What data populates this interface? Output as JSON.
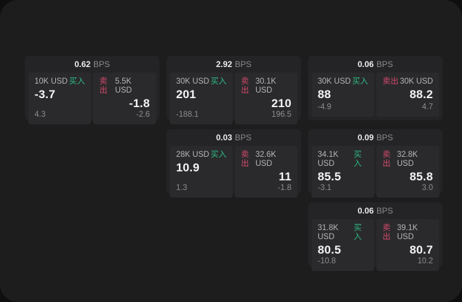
{
  "labels": {
    "buy": "买入",
    "sell": "卖出",
    "bps_unit": "BPS"
  },
  "colors": {
    "backdrop": "#0f0f10",
    "window": "#1d1d1e",
    "card": "#242426",
    "panel": "#2a2a2c",
    "buy": "#2ebd85",
    "sell": "#d5496c"
  },
  "cards": [
    {
      "row": 1,
      "col": 1,
      "bps": "0.62",
      "buy": {
        "notional": "10K USD",
        "price": "-3.7",
        "delta": "4.3"
      },
      "sell": {
        "notional": "5.5K USD",
        "price": "-1.8",
        "delta": "-2.6"
      }
    },
    {
      "row": 1,
      "col": 2,
      "bps": "2.92",
      "buy": {
        "notional": "30K USD",
        "price": "201",
        "delta": "-188.1"
      },
      "sell": {
        "notional": "30.1K USD",
        "price": "210",
        "delta": "196.5"
      }
    },
    {
      "row": 1,
      "col": 3,
      "bps": "0.06",
      "buy": {
        "notional": "30K USD",
        "price": "88",
        "delta": "-4.9"
      },
      "sell": {
        "notional": "30K USD",
        "price": "88.2",
        "delta": "4.7"
      }
    },
    {
      "row": 2,
      "col": 2,
      "bps": "0.03",
      "buy": {
        "notional": "28K USD",
        "price": "10.9",
        "delta": "1.3"
      },
      "sell": {
        "notional": "32.6K USD",
        "price": "11",
        "delta": "-1.8"
      }
    },
    {
      "row": 2,
      "col": 3,
      "bps": "0.09",
      "buy": {
        "notional": "34.1K USD",
        "price": "85.5",
        "delta": "-3.1"
      },
      "sell": {
        "notional": "32.8K USD",
        "price": "85.8",
        "delta": "3.0"
      }
    },
    {
      "row": 3,
      "col": 3,
      "bps": "0.06",
      "buy": {
        "notional": "31.8K USD",
        "price": "80.5",
        "delta": "-10.8"
      },
      "sell": {
        "notional": "39.1K USD",
        "price": "80.7",
        "delta": "10.2"
      }
    }
  ]
}
